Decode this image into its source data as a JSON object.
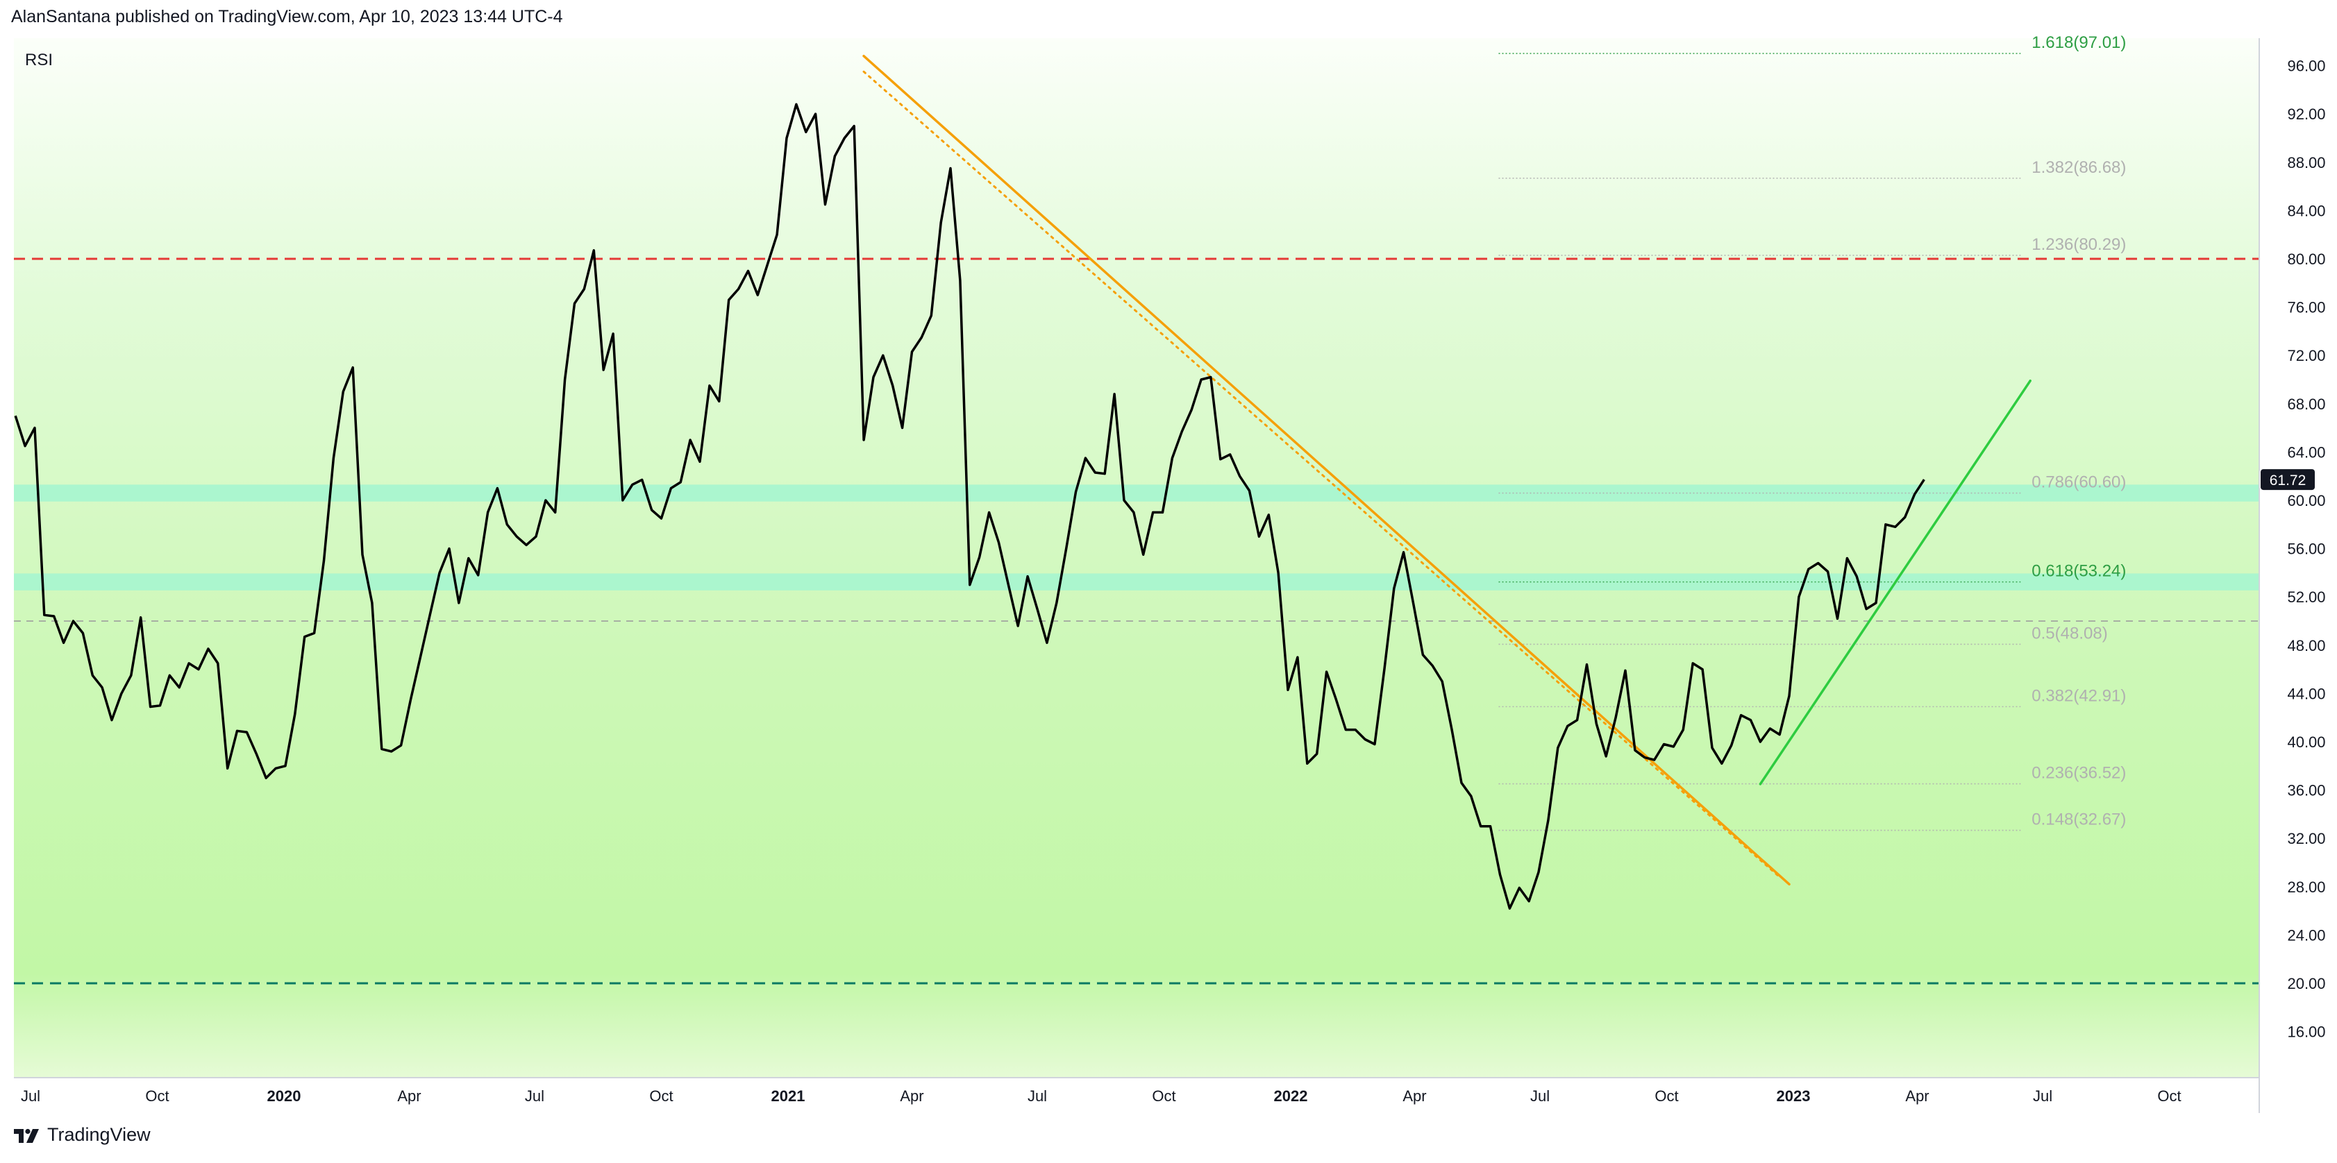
{
  "header": {
    "published_by": "AlanSantana published on TradingView.com, Apr 10, 2023 13:44 UTC-4"
  },
  "footer": {
    "brand": "TradingView",
    "logo": "tradingview-logo-icon"
  },
  "colors": {
    "rsi_line": "#000000",
    "overbought": "#e53935",
    "oversold": "#0b7a63",
    "midline": "#9e9e9e",
    "downtrend": "#f5a00a",
    "uptrend": "#2ecc40",
    "fib_level_band": "#a6f5cf",
    "fib_green_text": "#2e9e44",
    "fib_grey_text": "#b0b0b0",
    "background_top": "#f9fff6",
    "background_mid": "#dcf9cf",
    "background_bottom": "#c2f7a6"
  },
  "chart_data": {
    "type": "line",
    "title": "RSI",
    "ylim": [
      12,
      100
    ],
    "y_ticks": [
      "96.00",
      "92.00",
      "88.00",
      "84.00",
      "80.00",
      "76.00",
      "72.00",
      "68.00",
      "64.00",
      "60.00",
      "56.00",
      "52.00",
      "48.00",
      "44.00",
      "40.00",
      "36.00",
      "32.00",
      "28.00",
      "24.00",
      "20.00",
      "16.00"
    ],
    "x_labels": [
      {
        "label": "Jul",
        "date": "2019-07-01",
        "bold": false
      },
      {
        "label": "Oct",
        "date": "2019-10-01",
        "bold": false
      },
      {
        "label": "2020",
        "date": "2020-01-01",
        "bold": true
      },
      {
        "label": "Apr",
        "date": "2020-04-01",
        "bold": false
      },
      {
        "label": "Jul",
        "date": "2020-07-01",
        "bold": false
      },
      {
        "label": "Oct",
        "date": "2020-10-01",
        "bold": false
      },
      {
        "label": "2021",
        "date": "2021-01-01",
        "bold": true
      },
      {
        "label": "Apr",
        "date": "2021-04-01",
        "bold": false
      },
      {
        "label": "Jul",
        "date": "2021-07-01",
        "bold": false
      },
      {
        "label": "Oct",
        "date": "2021-10-01",
        "bold": false
      },
      {
        "label": "2022",
        "date": "2022-01-01",
        "bold": true
      },
      {
        "label": "Apr",
        "date": "2022-04-01",
        "bold": false
      },
      {
        "label": "Jul",
        "date": "2022-07-01",
        "bold": false
      },
      {
        "label": "Oct",
        "date": "2022-10-01",
        "bold": false
      },
      {
        "label": "2023",
        "date": "2023-01-01",
        "bold": true
      },
      {
        "label": "Apr",
        "date": "2023-04-01",
        "bold": false
      },
      {
        "label": "Jul",
        "date": "2023-07-01",
        "bold": false
      },
      {
        "label": "Oct",
        "date": "2023-10-01",
        "bold": false
      }
    ],
    "series": [
      {
        "values": [
          [
            "2019-06-20",
            67
          ],
          [
            "2019-06-27",
            64.5
          ],
          [
            "2019-07-04",
            66
          ],
          [
            "2019-07-11",
            50.5
          ],
          [
            "2019-07-18",
            50.4
          ],
          [
            "2019-07-25",
            48.2
          ],
          [
            "2019-08-01",
            50
          ],
          [
            "2019-08-08",
            49
          ],
          [
            "2019-08-15",
            45.5
          ],
          [
            "2019-08-22",
            44.5
          ],
          [
            "2019-08-29",
            41.8
          ],
          [
            "2019-09-05",
            44
          ],
          [
            "2019-09-12",
            45.5
          ],
          [
            "2019-09-19",
            50.3
          ],
          [
            "2019-09-26",
            42.9
          ],
          [
            "2019-10-03",
            43
          ],
          [
            "2019-10-10",
            45.5
          ],
          [
            "2019-10-17",
            44.5
          ],
          [
            "2019-10-24",
            46.5
          ],
          [
            "2019-10-31",
            46
          ],
          [
            "2019-11-07",
            47.7
          ],
          [
            "2019-11-14",
            46.5
          ],
          [
            "2019-11-21",
            37.8
          ],
          [
            "2019-11-28",
            40.9
          ],
          [
            "2019-12-05",
            40.8
          ],
          [
            "2019-12-12",
            39
          ],
          [
            "2019-12-19",
            37
          ],
          [
            "2019-12-26",
            37.8
          ],
          [
            "2020-01-02",
            38
          ],
          [
            "2020-01-09",
            42.3
          ],
          [
            "2020-01-16",
            48.7
          ],
          [
            "2020-01-23",
            49
          ],
          [
            "2020-01-30",
            55
          ],
          [
            "2020-02-06",
            63.5
          ],
          [
            "2020-02-13",
            69
          ],
          [
            "2020-02-20",
            71
          ],
          [
            "2020-02-27",
            55.5
          ],
          [
            "2020-03-05",
            51.5
          ],
          [
            "2020-03-12",
            39.4
          ],
          [
            "2020-03-19",
            39.2
          ],
          [
            "2020-03-26",
            39.7
          ],
          [
            "2020-04-02",
            43.5
          ],
          [
            "2020-04-09",
            47
          ],
          [
            "2020-04-16",
            50.5
          ],
          [
            "2020-04-23",
            54
          ],
          [
            "2020-04-30",
            56
          ],
          [
            "2020-05-07",
            51.5
          ],
          [
            "2020-05-14",
            55.2
          ],
          [
            "2020-05-21",
            53.8
          ],
          [
            "2020-05-28",
            59
          ],
          [
            "2020-06-04",
            61
          ],
          [
            "2020-06-11",
            58
          ],
          [
            "2020-06-18",
            57
          ],
          [
            "2020-06-25",
            56.3
          ],
          [
            "2020-07-02",
            57
          ],
          [
            "2020-07-09",
            60
          ],
          [
            "2020-07-16",
            59
          ],
          [
            "2020-07-23",
            70
          ],
          [
            "2020-07-30",
            76.3
          ],
          [
            "2020-08-06",
            77.5
          ],
          [
            "2020-08-13",
            80.7
          ],
          [
            "2020-08-20",
            70.8
          ],
          [
            "2020-08-27",
            73.8
          ],
          [
            "2020-09-03",
            60
          ],
          [
            "2020-09-10",
            61.3
          ],
          [
            "2020-09-17",
            61.7
          ],
          [
            "2020-09-24",
            59.2
          ],
          [
            "2020-10-01",
            58.5
          ],
          [
            "2020-10-08",
            61
          ],
          [
            "2020-10-15",
            61.5
          ],
          [
            "2020-10-22",
            65
          ],
          [
            "2020-10-29",
            63.2
          ],
          [
            "2020-11-05",
            69.5
          ],
          [
            "2020-11-12",
            68.2
          ],
          [
            "2020-11-19",
            76.6
          ],
          [
            "2020-11-26",
            77.5
          ],
          [
            "2020-12-03",
            79
          ],
          [
            "2020-12-10",
            77
          ],
          [
            "2020-12-17",
            79.5
          ],
          [
            "2020-12-24",
            82
          ],
          [
            "2020-12-31",
            90
          ],
          [
            "2021-01-07",
            92.8
          ],
          [
            "2021-01-14",
            90.5
          ],
          [
            "2021-01-21",
            92
          ],
          [
            "2021-01-28",
            84.5
          ],
          [
            "2021-02-04",
            88.5
          ],
          [
            "2021-02-11",
            90
          ],
          [
            "2021-02-18",
            91
          ],
          [
            "2021-02-25",
            65
          ],
          [
            "2021-03-04",
            70.2
          ],
          [
            "2021-03-11",
            72
          ],
          [
            "2021-03-18",
            69.5
          ],
          [
            "2021-03-25",
            66
          ],
          [
            "2021-04-01",
            72.3
          ],
          [
            "2021-04-08",
            73.5
          ],
          [
            "2021-04-15",
            75.3
          ],
          [
            "2021-04-22",
            83
          ],
          [
            "2021-04-29",
            87.5
          ],
          [
            "2021-05-06",
            78.2
          ],
          [
            "2021-05-13",
            53
          ],
          [
            "2021-05-20",
            55.3
          ],
          [
            "2021-05-27",
            59
          ],
          [
            "2021-06-03",
            56.5
          ],
          [
            "2021-06-10",
            53
          ],
          [
            "2021-06-17",
            49.6
          ],
          [
            "2021-06-24",
            53.7
          ],
          [
            "2021-07-01",
            51
          ],
          [
            "2021-07-08",
            48.2
          ],
          [
            "2021-07-15",
            51.5
          ],
          [
            "2021-07-22",
            56
          ],
          [
            "2021-07-29",
            60.7
          ],
          [
            "2021-08-05",
            63.5
          ],
          [
            "2021-08-12",
            62.3
          ],
          [
            "2021-08-19",
            62.2
          ],
          [
            "2021-08-26",
            68.8
          ],
          [
            "2021-09-02",
            60
          ],
          [
            "2021-09-09",
            59
          ],
          [
            "2021-09-16",
            55.5
          ],
          [
            "2021-09-23",
            59
          ],
          [
            "2021-09-30",
            59
          ],
          [
            "2021-10-07",
            63.5
          ],
          [
            "2021-10-14",
            65.7
          ],
          [
            "2021-10-21",
            67.5
          ],
          [
            "2021-10-28",
            70
          ],
          [
            "2021-11-04",
            70.2
          ],
          [
            "2021-11-11",
            63.4
          ],
          [
            "2021-11-18",
            63.8
          ],
          [
            "2021-11-25",
            62
          ],
          [
            "2021-12-02",
            60.8
          ],
          [
            "2021-12-09",
            57
          ],
          [
            "2021-12-16",
            58.8
          ],
          [
            "2021-12-23",
            54
          ],
          [
            "2021-12-30",
            44.3
          ],
          [
            "2022-01-06",
            47
          ],
          [
            "2022-01-13",
            38.2
          ],
          [
            "2022-01-20",
            39
          ],
          [
            "2022-01-27",
            45.8
          ],
          [
            "2022-02-03",
            43.5
          ],
          [
            "2022-02-10",
            41
          ],
          [
            "2022-02-17",
            41
          ],
          [
            "2022-02-24",
            40.2
          ],
          [
            "2022-03-03",
            39.8
          ],
          [
            "2022-03-10",
            46
          ],
          [
            "2022-03-17",
            52.7
          ],
          [
            "2022-03-24",
            55.7
          ],
          [
            "2022-03-31",
            51.5
          ],
          [
            "2022-04-07",
            47.2
          ],
          [
            "2022-04-14",
            46.3
          ],
          [
            "2022-04-21",
            45
          ],
          [
            "2022-04-28",
            41
          ],
          [
            "2022-05-05",
            36.6
          ],
          [
            "2022-05-12",
            35.5
          ],
          [
            "2022-05-19",
            33
          ],
          [
            "2022-05-26",
            33
          ],
          [
            "2022-06-02",
            29
          ],
          [
            "2022-06-09",
            26.2
          ],
          [
            "2022-06-16",
            27.9
          ],
          [
            "2022-06-23",
            26.8
          ],
          [
            "2022-06-30",
            29.2
          ],
          [
            "2022-07-07",
            33.5
          ],
          [
            "2022-07-14",
            39.5
          ],
          [
            "2022-07-21",
            41.3
          ],
          [
            "2022-07-28",
            41.8
          ],
          [
            "2022-08-04",
            46.4
          ],
          [
            "2022-08-11",
            41.5
          ],
          [
            "2022-08-18",
            38.8
          ],
          [
            "2022-08-25",
            42
          ],
          [
            "2022-09-01",
            45.9
          ],
          [
            "2022-09-08",
            39.3
          ],
          [
            "2022-09-15",
            38.7
          ],
          [
            "2022-09-22",
            38.5
          ],
          [
            "2022-09-29",
            39.8
          ],
          [
            "2022-10-06",
            39.6
          ],
          [
            "2022-10-13",
            41
          ],
          [
            "2022-10-20",
            46.5
          ],
          [
            "2022-10-27",
            46
          ],
          [
            "2022-11-03",
            39.5
          ],
          [
            "2022-11-10",
            38.2
          ],
          [
            "2022-11-17",
            39.7
          ],
          [
            "2022-11-24",
            42.2
          ],
          [
            "2022-12-01",
            41.8
          ],
          [
            "2022-12-08",
            40
          ],
          [
            "2022-12-15",
            41.1
          ],
          [
            "2022-12-22",
            40.6
          ],
          [
            "2022-12-29",
            43.8
          ],
          [
            "2023-01-05",
            52
          ],
          [
            "2023-01-12",
            54.3
          ],
          [
            "2023-01-19",
            54.8
          ],
          [
            "2023-01-26",
            54.1
          ],
          [
            "2023-02-02",
            50.2
          ],
          [
            "2023-02-09",
            55.2
          ],
          [
            "2023-02-16",
            53.7
          ],
          [
            "2023-02-23",
            51
          ],
          [
            "2023-03-02",
            51.5
          ],
          [
            "2023-03-09",
            58
          ],
          [
            "2023-03-16",
            57.8
          ],
          [
            "2023-03-23",
            58.6
          ],
          [
            "2023-03-30",
            60.5
          ],
          [
            "2023-04-06",
            61.72
          ]
        ]
      }
    ],
    "overbought": 80,
    "oversold": 20,
    "midline": 50,
    "last_value": "61.72",
    "fib_levels": [
      {
        "label": "1.618(97.01)",
        "value": 97.01,
        "emphasis": true
      },
      {
        "label": "1.382(86.68)",
        "value": 86.68,
        "emphasis": false
      },
      {
        "label": "1.236(80.29)",
        "value": 80.29,
        "emphasis": false
      },
      {
        "label": "0.786(60.60)",
        "value": 60.6,
        "emphasis": false
      },
      {
        "label": "0.618(53.24)",
        "value": 53.24,
        "emphasis": true
      },
      {
        "label": "0.5(48.08)",
        "value": 48.08,
        "emphasis": false
      },
      {
        "label": "0.382(42.91)",
        "value": 42.91,
        "emphasis": false
      },
      {
        "label": "0.236(36.52)",
        "value": 36.52,
        "emphasis": false
      },
      {
        "label": "0.148(32.67)",
        "value": 32.67,
        "emphasis": false
      }
    ],
    "highlight_bands": [
      {
        "center": 60.6,
        "half_height": 0.7
      },
      {
        "center": 53.24,
        "half_height": 0.7
      }
    ],
    "trendlines": [
      {
        "name": "downtrend",
        "style": "solid",
        "from": [
          "2021-02-25",
          96.8
        ],
        "to": [
          "2022-12-29",
          28.2
        ]
      },
      {
        "name": "downtrend",
        "style": "dotted",
        "from": [
          "2021-02-25",
          95.5
        ],
        "to": [
          "2022-12-22",
          28.8
        ]
      },
      {
        "name": "uptrend",
        "style": "solid",
        "from": [
          "2022-12-08",
          36.5
        ],
        "to": [
          "2023-06-22",
          69.9
        ]
      }
    ],
    "fib_range": [
      "2022-06-01",
      "2023-06-15"
    ]
  }
}
